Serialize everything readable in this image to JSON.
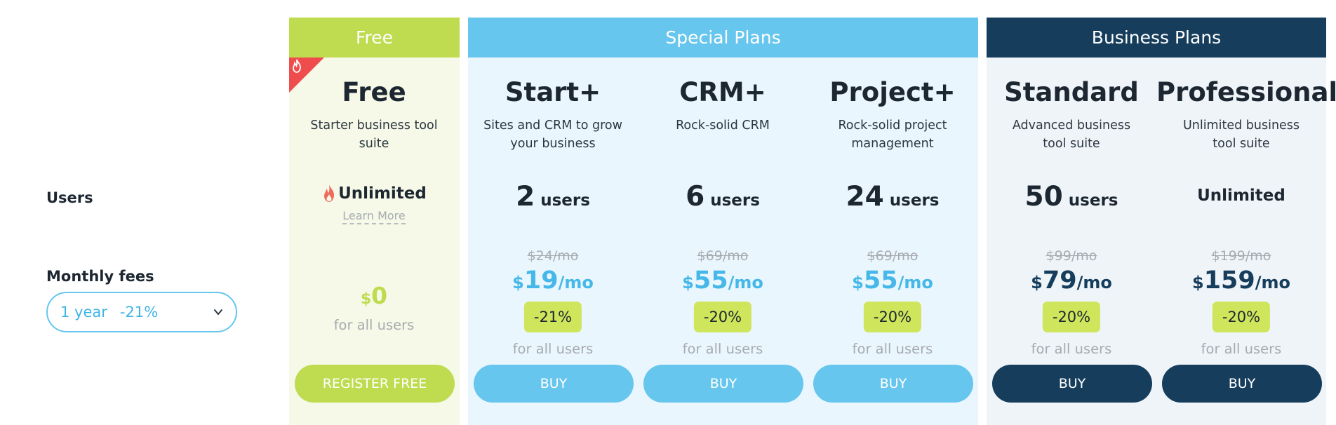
{
  "labels": {
    "users": "Users",
    "monthly_fees": "Monthly fees"
  },
  "period_select": {
    "value": "1 year",
    "discount": "-21%"
  },
  "groups": {
    "free": "Free",
    "special": "Special Plans",
    "business": "Business Plans"
  },
  "colors": {
    "green": "#bfdb4f",
    "light_blue": "#67c6ee",
    "navy": "#163e5c",
    "hot_red": "#ef4d4d"
  },
  "currency": "$",
  "per_month": "/mo",
  "plans": [
    {
      "name": "Free",
      "description": "Starter business tool suite",
      "users": "Unlimited",
      "users_icon": "flame-icon",
      "learn_more": "Learn More",
      "price": "0",
      "for_all": "for all users",
      "button": "REGISTER FREE"
    },
    {
      "name": "Start+",
      "description": "Sites and CRM to grow your business",
      "users_count": "2",
      "users_unit": "users",
      "old_price": "$24/mo",
      "price": "19",
      "discount": "-21%",
      "for_all": "for all users",
      "button": "BUY"
    },
    {
      "name": "CRM+",
      "description": "Rock-solid CRM",
      "users_count": "6",
      "users_unit": "users",
      "old_price": "$69/mo",
      "price": "55",
      "discount": "-20%",
      "for_all": "for all users",
      "button": "BUY"
    },
    {
      "name": "Project+",
      "description": "Rock-solid project management",
      "users_count": "24",
      "users_unit": "users",
      "old_price": "$69/mo",
      "price": "55",
      "discount": "-20%",
      "for_all": "for all users",
      "button": "BUY"
    },
    {
      "name": "Standard",
      "description": "Advanced business tool suite",
      "users_count": "50",
      "users_unit": "users",
      "old_price": "$99/mo",
      "price": "79",
      "discount": "-20%",
      "for_all": "for all users",
      "button": "BUY"
    },
    {
      "name": "Professional",
      "description": "Unlimited business tool suite",
      "users": "Unlimited",
      "old_price": "$199/mo",
      "price": "159",
      "discount": "-20%",
      "for_all": "for all users",
      "button": "BUY"
    }
  ]
}
